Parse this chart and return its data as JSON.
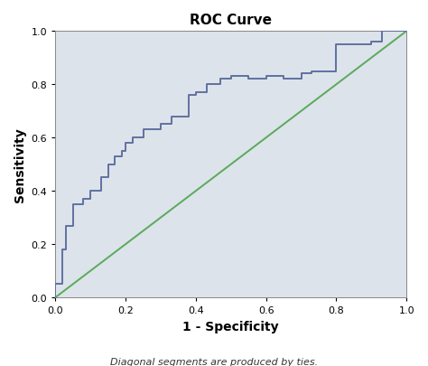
{
  "title": "ROC Curve",
  "xlabel": "1 - Specificity",
  "ylabel": "Sensitivity",
  "footnote": "Diagonal segments are produced by ties.",
  "xlim": [
    0.0,
    1.0
  ],
  "ylim": [
    0.0,
    1.0
  ],
  "xticks": [
    0.0,
    0.2,
    0.4,
    0.6,
    0.8,
    1.0
  ],
  "yticks": [
    0.0,
    0.2,
    0.4,
    0.6,
    0.8,
    1.0
  ],
  "background_color": "#dce3ea",
  "roc_color": "#6070a0",
  "diag_color": "#5aaa5a",
  "roc_x": [
    0.0,
    0.0,
    0.02,
    0.02,
    0.03,
    0.03,
    0.05,
    0.05,
    0.08,
    0.08,
    0.1,
    0.1,
    0.13,
    0.13,
    0.15,
    0.15,
    0.17,
    0.17,
    0.19,
    0.19,
    0.2,
    0.2,
    0.22,
    0.22,
    0.25,
    0.25,
    0.3,
    0.3,
    0.33,
    0.33,
    0.38,
    0.38,
    0.4,
    0.4,
    0.43,
    0.43,
    0.47,
    0.47,
    0.5,
    0.5,
    0.55,
    0.55,
    0.6,
    0.6,
    0.65,
    0.65,
    0.7,
    0.7,
    0.73,
    0.73,
    0.8,
    0.8,
    0.9,
    0.9,
    0.93,
    0.93,
    1.0
  ],
  "roc_y": [
    0.0,
    0.05,
    0.05,
    0.18,
    0.18,
    0.27,
    0.27,
    0.35,
    0.35,
    0.37,
    0.37,
    0.4,
    0.4,
    0.45,
    0.45,
    0.5,
    0.5,
    0.53,
    0.53,
    0.55,
    0.55,
    0.58,
    0.58,
    0.6,
    0.6,
    0.63,
    0.63,
    0.65,
    0.65,
    0.68,
    0.68,
    0.76,
    0.76,
    0.77,
    0.77,
    0.8,
    0.8,
    0.82,
    0.82,
    0.83,
    0.83,
    0.82,
    0.82,
    0.83,
    0.83,
    0.82,
    0.82,
    0.84,
    0.84,
    0.85,
    0.85,
    0.95,
    0.95,
    0.96,
    0.96,
    1.0,
    1.0
  ],
  "title_fontsize": 11,
  "label_fontsize": 10,
  "tick_fontsize": 8,
  "footnote_fontsize": 8,
  "roc_linewidth": 1.4,
  "diag_linewidth": 1.4,
  "fig_width": 4.74,
  "fig_height": 4.06,
  "dpi": 100
}
